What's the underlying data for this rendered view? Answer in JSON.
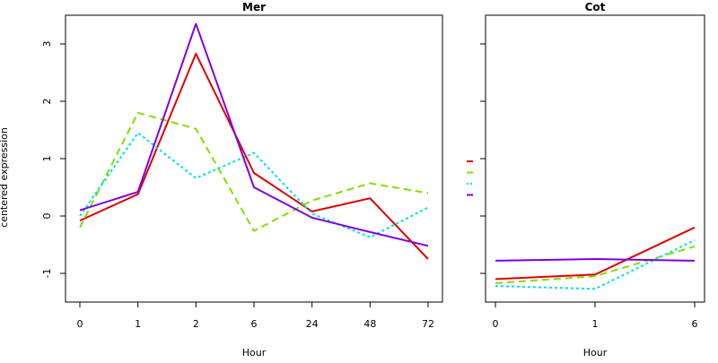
{
  "colors": {
    "red": "#e00000",
    "green": "#80e000",
    "cyan": "#00e0e0",
    "purple": "#8000e0"
  },
  "chart_data": [
    {
      "type": "line",
      "title": "Mer",
      "xlabel": "Hour",
      "ylabel": "centered expression",
      "x": [
        "0",
        "1",
        "2",
        "6",
        "24",
        "48",
        "72"
      ],
      "ylim": [
        -1.5,
        3.5
      ],
      "yticks": [
        -1,
        0,
        1,
        2,
        3
      ],
      "grid": false,
      "series": [
        {
          "color": "red",
          "style": "solid",
          "values": [
            -0.08,
            0.38,
            2.83,
            0.75,
            0.08,
            0.31,
            -0.75
          ]
        },
        {
          "color": "green",
          "style": "dashed",
          "values": [
            -0.2,
            1.8,
            1.52,
            -0.26,
            0.27,
            0.57,
            0.4
          ]
        },
        {
          "color": "cyan",
          "style": "dotted",
          "values": [
            0.0,
            1.45,
            0.66,
            1.1,
            0.04,
            -0.37,
            0.15
          ]
        },
        {
          "color": "purple",
          "style": "solid",
          "values": [
            0.1,
            0.42,
            3.35,
            0.5,
            -0.03,
            -0.28,
            -0.52
          ]
        }
      ]
    },
    {
      "type": "line",
      "title": "Cot",
      "xlabel": "Hour",
      "ylabel": "",
      "x": [
        "0",
        "1",
        "6"
      ],
      "ylim": [
        -1.5,
        3.5
      ],
      "yticks": [
        -1,
        0,
        1,
        2,
        3
      ],
      "grid": false,
      "series": [
        {
          "color": "red",
          "style": "solid",
          "values": [
            -1.1,
            -1.02,
            -0.2
          ]
        },
        {
          "color": "green",
          "style": "dashed",
          "values": [
            -1.17,
            -1.05,
            -0.53
          ]
        },
        {
          "color": "cyan",
          "style": "dotted",
          "values": [
            -1.22,
            -1.27,
            -0.42
          ]
        },
        {
          "color": "purple",
          "style": "solid",
          "values": [
            -0.78,
            -0.75,
            -0.78
          ]
        }
      ]
    }
  ]
}
